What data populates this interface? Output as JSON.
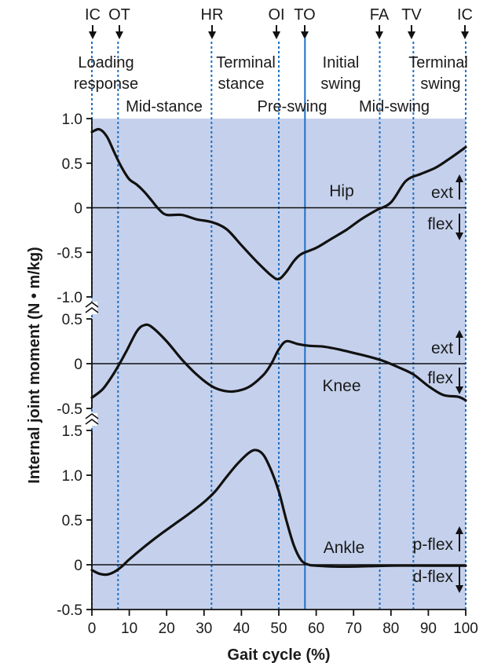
{
  "chart_data": {
    "type": "line",
    "xlabel": "Gait cycle (%)",
    "ylabel": "Internal joint moment (N • m/kg)",
    "x_ticks": [
      0,
      10,
      20,
      30,
      40,
      50,
      60,
      70,
      80,
      90,
      100
    ],
    "xlim": [
      0,
      100
    ],
    "colors": {
      "background": "#c5d1ec",
      "event_lines": "#1f6fc4",
      "curves": "#111111"
    },
    "events": [
      {
        "label": "IC",
        "x": 0,
        "solid": false
      },
      {
        "label": "OT",
        "x": 7,
        "solid": false
      },
      {
        "label": "HR",
        "x": 32,
        "solid": false
      },
      {
        "label": "OI",
        "x": 50,
        "solid": false
      },
      {
        "label": "TO",
        "x": 57,
        "solid": true
      },
      {
        "label": "FA",
        "x": 77,
        "solid": false
      },
      {
        "label": "TV",
        "x": 86,
        "solid": false
      },
      {
        "label": "IC",
        "x": 100,
        "solid": false
      }
    ],
    "phases": [
      {
        "lines": [
          "Loading",
          "response"
        ]
      },
      {
        "lines": [
          "Mid-stance"
        ]
      },
      {
        "lines": [
          "Terminal",
          "stance"
        ]
      },
      {
        "lines": [
          "Pre-swing"
        ]
      },
      {
        "lines": [
          "Initial",
          "swing"
        ]
      },
      {
        "lines": [
          "Mid-swing"
        ]
      },
      {
        "lines": [
          "Terminal",
          "swing"
        ]
      }
    ],
    "panels": [
      {
        "name": "Hip",
        "ylim": [
          -1.0,
          1.0
        ],
        "y_ticks": [
          "1.0",
          "0.5",
          "0",
          "-0.5",
          "-1.0"
        ],
        "y_tick_values": [
          1.0,
          0.5,
          0,
          -0.5,
          -1.0
        ],
        "up_label": "ext",
        "down_label": "flex",
        "x": [
          0,
          2,
          4,
          6,
          8,
          10,
          12,
          14,
          16,
          18,
          20,
          24,
          28,
          32,
          36,
          40,
          44,
          48,
          50,
          52,
          54,
          56,
          60,
          64,
          68,
          72,
          76,
          80,
          84,
          88,
          92,
          96,
          100
        ],
        "y": [
          0.85,
          0.88,
          0.8,
          0.62,
          0.45,
          0.32,
          0.26,
          0.18,
          0.08,
          -0.02,
          -0.08,
          -0.08,
          -0.13,
          -0.16,
          -0.24,
          -0.42,
          -0.6,
          -0.76,
          -0.8,
          -0.72,
          -0.6,
          -0.52,
          -0.45,
          -0.35,
          -0.25,
          -0.13,
          -0.03,
          0.06,
          0.3,
          0.38,
          0.45,
          0.56,
          0.68
        ]
      },
      {
        "name": "Knee",
        "ylim": [
          -0.5,
          0.5
        ],
        "y_ticks": [
          "0.5",
          "0",
          "-0.5"
        ],
        "y_tick_values": [
          0.5,
          0,
          -0.5
        ],
        "up_label": "ext",
        "down_label": "flex",
        "x": [
          0,
          3,
          6,
          9,
          12,
          14,
          16,
          20,
          24,
          28,
          32,
          35,
          38,
          42,
          46,
          48,
          50,
          52,
          55,
          58,
          62,
          66,
          70,
          74,
          78,
          82,
          86,
          90,
          94,
          98,
          100
        ],
        "y": [
          -0.38,
          -0.28,
          -0.1,
          0.12,
          0.36,
          0.43,
          0.41,
          0.25,
          0.05,
          -0.12,
          -0.25,
          -0.3,
          -0.31,
          -0.26,
          -0.12,
          0.0,
          0.16,
          0.25,
          0.22,
          0.2,
          0.19,
          0.16,
          0.12,
          0.08,
          0.03,
          -0.04,
          -0.12,
          -0.25,
          -0.35,
          -0.37,
          -0.41
        ]
      },
      {
        "name": "Ankle",
        "ylim": [
          -0.5,
          1.5
        ],
        "y_ticks": [
          "1.5",
          "1.0",
          "0.5",
          "0",
          "-0.5"
        ],
        "y_tick_values": [
          1.5,
          1.0,
          0.5,
          0,
          -0.5
        ],
        "up_label": "p-flex",
        "down_label": "d-flex",
        "x": [
          0,
          2,
          4,
          6,
          8,
          10,
          14,
          18,
          22,
          26,
          30,
          33,
          36,
          39,
          42,
          44,
          46,
          48,
          50,
          52,
          54,
          56,
          58,
          60,
          65,
          70,
          80,
          90,
          100
        ],
        "y": [
          -0.06,
          -0.1,
          -0.11,
          -0.08,
          -0.02,
          0.06,
          0.2,
          0.33,
          0.45,
          0.57,
          0.7,
          0.82,
          0.98,
          1.13,
          1.25,
          1.28,
          1.22,
          1.05,
          0.82,
          0.5,
          0.22,
          0.05,
          0.0,
          -0.01,
          -0.02,
          -0.02,
          -0.01,
          -0.01,
          -0.01
        ]
      }
    ]
  }
}
